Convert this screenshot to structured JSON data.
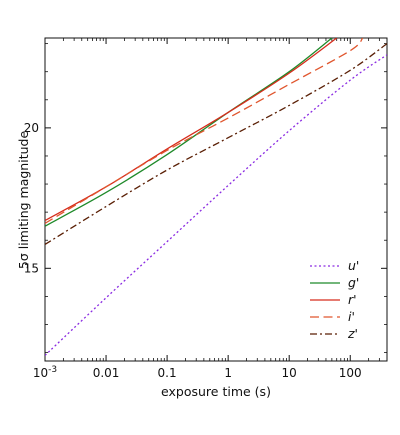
{
  "chart_data": {
    "type": "line",
    "xlabel": "exposure time (s)",
    "ylabel": "5σ limiting magnitude",
    "x_scale": "log",
    "y_axis_inverted": true,
    "xlim": [
      0.001,
      400
    ],
    "ylim": [
      23.2,
      11.7
    ],
    "x_ticks": [
      {
        "value": 0.001,
        "label_base": "10",
        "label_exp": "-3"
      },
      {
        "value": 0.01,
        "label": "0.01"
      },
      {
        "value": 0.1,
        "label": "0.1"
      },
      {
        "value": 1,
        "label": "1"
      },
      {
        "value": 10,
        "label": "10"
      },
      {
        "value": 100,
        "label": "100"
      }
    ],
    "y_ticks": [
      {
        "value": 20,
        "label": "20"
      },
      {
        "value": 15,
        "label": "15"
      }
    ],
    "legend_position": "bottom-right",
    "series": [
      {
        "name": "u'",
        "color": "#8a2be2",
        "dash": "2,2.5",
        "points": [
          [
            0.001,
            11.9
          ],
          [
            0.01,
            13.95
          ],
          [
            0.1,
            15.95
          ],
          [
            1,
            17.95
          ],
          [
            10,
            19.9
          ],
          [
            100,
            21.7
          ],
          [
            400,
            22.6
          ]
        ]
      },
      {
        "name": "g'",
        "color": "#1f8a2a",
        "dash": "",
        "points": [
          [
            0.001,
            16.5
          ],
          [
            0.01,
            17.7
          ],
          [
            0.1,
            19.05
          ],
          [
            1,
            20.55
          ],
          [
            10,
            22.0
          ],
          [
            50,
            23.2
          ]
        ]
      },
      {
        "name": "r'",
        "color": "#d62c1c",
        "dash": "",
        "points": [
          [
            0.001,
            16.7
          ],
          [
            0.01,
            17.9
          ],
          [
            0.1,
            19.25
          ],
          [
            1,
            20.55
          ],
          [
            10,
            21.95
          ],
          [
            60,
            23.2
          ]
        ]
      },
      {
        "name": "i'",
        "color": "#e0562e",
        "dash": "9,4.5",
        "points": [
          [
            0.001,
            16.6
          ],
          [
            0.01,
            17.9
          ],
          [
            0.1,
            19.2
          ],
          [
            1,
            20.35
          ],
          [
            10,
            21.55
          ],
          [
            100,
            22.75
          ],
          [
            160,
            23.2
          ]
        ]
      },
      {
        "name": "z'",
        "color": "#5a1f05",
        "dash": "7,3,2,3",
        "points": [
          [
            0.001,
            15.85
          ],
          [
            0.01,
            17.2
          ],
          [
            0.1,
            18.5
          ],
          [
            1,
            19.65
          ],
          [
            10,
            20.8
          ],
          [
            100,
            22.05
          ],
          [
            400,
            23.0
          ]
        ]
      }
    ]
  }
}
